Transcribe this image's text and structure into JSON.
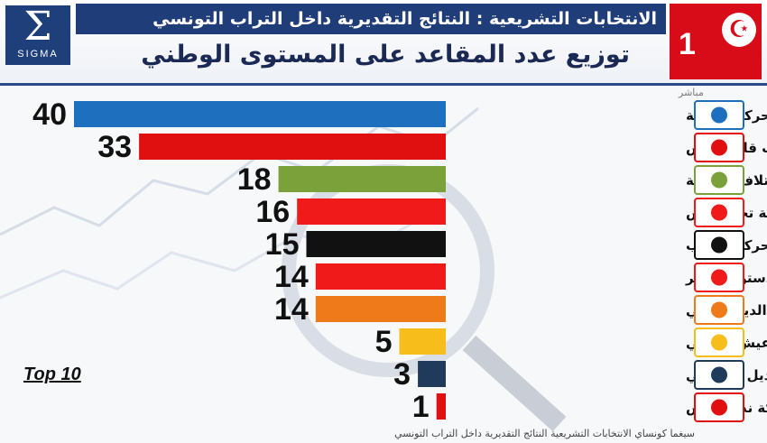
{
  "header": {
    "title": "الانتخابات التشريعية : النتائج التقديرية داخل التراب التونسي",
    "subtitle": "توزيع عدد المقاعد على المستوى الوطني",
    "logo_symbol": "Σ",
    "logo_text": "SIGMA",
    "channel_number": "1",
    "flag_symbol": "☪",
    "live_label": "مباشر"
  },
  "badge": {
    "label": "Top 10"
  },
  "footer": {
    "text": "سيغما كونساي     الانتخابات التشريعية     النتائج التقديرية داخل التراب التونسي"
  },
  "colors": {
    "header_bar": "#1f3d78",
    "channel": "#d80b18"
  },
  "chart_data": {
    "type": "bar",
    "orientation": "horizontal",
    "categories": [
      "حركة النهضة",
      "حزب قلب تونس",
      "ائتلاف الكرامة",
      "حزب حركة تحيا تونس",
      "حزب حركة الشعب",
      "الحزب الدستوري الحر",
      "حزب التيار الديمقراطي",
      "عيش تونسي",
      "حزب البديل التونسي",
      "حركة نداء تونس"
    ],
    "values": [
      40,
      33,
      18,
      16,
      15,
      14,
      14,
      5,
      3,
      1
    ],
    "colors": [
      "#1f6fbf",
      "#e01010",
      "#7ba23a",
      "#f01a1a",
      "#111111",
      "#f01a1a",
      "#ee7a1a",
      "#f7bd1a",
      "#1f3a5a",
      "#e01010"
    ],
    "logos": [
      "ennahdha-logo",
      "qalb-tounes-logo",
      "karama-logo",
      "tahya-tounes-logo",
      "echaab-logo",
      "pdl-logo",
      "attayar-logo",
      "aich-tounsi-logo",
      "badil-logo",
      "nidaa-logo"
    ],
    "value_labels": true,
    "xlim": [
      0,
      40
    ],
    "grid": false,
    "legend": "none",
    "title": "",
    "xlabel": "",
    "ylabel": ""
  }
}
